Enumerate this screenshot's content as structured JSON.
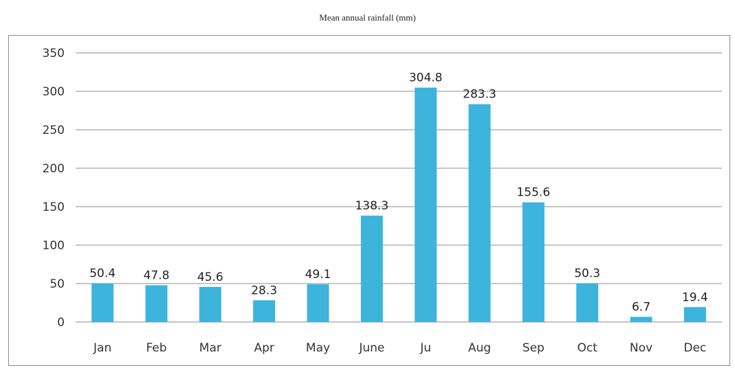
{
  "chart_data": {
    "type": "bar",
    "title": "Mean annual rainfall (mm)",
    "xlabel": "",
    "ylabel": "",
    "categories": [
      "Jan",
      "Feb",
      "Mar",
      "Apr",
      "May",
      "June",
      "Ju",
      "Aug",
      "Sep",
      "Oct",
      "Nov",
      "Dec"
    ],
    "values": [
      50.4,
      47.8,
      45.6,
      28.3,
      49.1,
      138.3,
      304.8,
      283.3,
      155.6,
      50.3,
      6.7,
      19.4
    ],
    "data_labels": [
      "50.4",
      "47.8",
      "45.6",
      "28.3",
      "49.1",
      "138.3",
      "304.8",
      "283.3",
      "155.6",
      "50.3",
      "6.7",
      "19.4"
    ],
    "ylim": [
      0,
      350
    ],
    "yticks": [
      "0",
      "50",
      "100",
      "150",
      "200",
      "250",
      "300",
      "350"
    ],
    "grid": true,
    "legend": "none",
    "bar_color": "#3db4dc",
    "grid_color": "#8c8c8c"
  }
}
